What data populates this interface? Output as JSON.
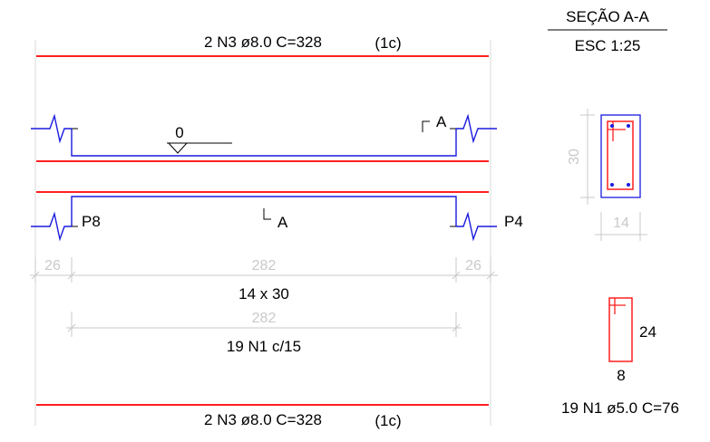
{
  "colors": {
    "rebar_red": "#ff1f1f",
    "beam_blue": "#1a1adf",
    "dimension_gray": "#c9c9c9",
    "text_black": "#000000"
  },
  "section_header": {
    "title": "SEÇÃO A-A",
    "scale": "ESC 1:25"
  },
  "top_bar_label": {
    "main": "2 N3 ø8.0  C=328",
    "layer": "(1c)"
  },
  "bottom_bar_label": {
    "main": "2 N3 ø8.0  C=328",
    "layer": "(1c)"
  },
  "level_marker": "0",
  "section_cut": {
    "top_label": "A",
    "bottom_label": "A"
  },
  "supports": {
    "left": "P8",
    "right": "P4"
  },
  "dimensions": {
    "left_support": "26",
    "span": "282",
    "right_support": "26",
    "stirrup_span": "282"
  },
  "beam_size": "14 x 30",
  "stirrup_spacing": "19 N1 c/15",
  "cross_section": {
    "height": "30",
    "width": "14"
  },
  "stirrup_detail": {
    "height": "24",
    "width": "8",
    "label": "19 N1 ø5.0  C=76"
  }
}
